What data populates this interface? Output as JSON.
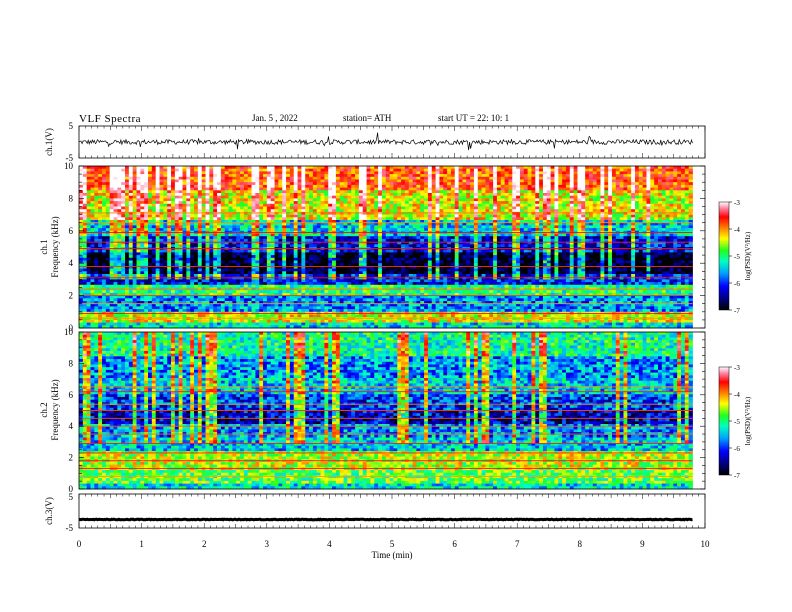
{
  "header": {
    "title": "VLF  Spectra",
    "date": "Jan.  5  , 2022",
    "station": "station= ATH",
    "start": "start  UT  =   22: 10: 1"
  },
  "labels": {
    "ch1_wave": "ch.1(V)",
    "ch1_spec_channel": "ch.1",
    "ch2_spec_channel": "ch.2",
    "ch3_wave": "ch.3(V)",
    "freq_axis": "Frequency  (kHz)",
    "colorbar": "log(PSD)(V²/Hz)",
    "time_axis": "Time  (min)"
  },
  "colors": {
    "colormap": [
      "#000000",
      "#00007a",
      "#0000ff",
      "#00a0ff",
      "#00ffc0",
      "#20ff20",
      "#ffff00",
      "#ff8000",
      "#ff0000",
      "#ff80a0",
      "#ffffff"
    ],
    "trace": "#000000"
  },
  "chart_data": [
    {
      "type": "line",
      "panel": "ch1-waveform",
      "ylabel": "ch.1(V)",
      "ylim": [
        -5,
        5
      ],
      "yticks": [
        -5,
        5
      ],
      "xlim": [
        0,
        10
      ],
      "x_extent": [
        0,
        9.8
      ],
      "description_values": {
        "mean": 0,
        "amplitude_typical": 1.5,
        "spikes_max": 5
      }
    },
    {
      "type": "heatmap",
      "panel": "ch1-spectrogram",
      "channel": "ch.1",
      "ylabel": "Frequency  (kHz)",
      "ylim": [
        0,
        10
      ],
      "yticks": [
        0,
        2,
        4,
        6,
        8,
        10
      ],
      "xlim": [
        0,
        10
      ],
      "x_extent": [
        0,
        9.8
      ],
      "colorbar": {
        "label": "log(PSD)(V²/Hz)",
        "range": [
          -7,
          -3
        ],
        "ticks": [
          -3,
          -4,
          -5,
          -6,
          -7
        ]
      },
      "bands": [
        {
          "f": [
            0.0,
            0.3
          ],
          "level": -5.5
        },
        {
          "f": [
            0.3,
            1.0
          ],
          "level": -4.6
        },
        {
          "f": [
            1.0,
            2.0
          ],
          "level": -5.8
        },
        {
          "f": [
            2.0,
            2.6
          ],
          "level": -5.2
        },
        {
          "f": [
            2.6,
            3.4
          ],
          "level": -6.2
        },
        {
          "f": [
            3.4,
            4.6
          ],
          "level": -6.9
        },
        {
          "f": [
            4.6,
            5.6
          ],
          "level": -6.3
        },
        {
          "f": [
            5.6,
            6.6
          ],
          "level": -5.6
        },
        {
          "f": [
            6.6,
            8.5
          ],
          "level": -4.6
        },
        {
          "f": [
            8.5,
            10.0
          ],
          "level": -4.0
        }
      ],
      "lines_khz": [
        0.6,
        0.9,
        1.5,
        2.0,
        2.4,
        3.1,
        3.8,
        4.9,
        5.3,
        5.9,
        6.5,
        7.1
      ]
    },
    {
      "type": "heatmap",
      "panel": "ch2-spectrogram",
      "channel": "ch.2",
      "ylabel": "Frequency  (kHz)",
      "ylim": [
        0,
        10
      ],
      "yticks": [
        0,
        2,
        4,
        6,
        8,
        10
      ],
      "xlim": [
        0,
        10
      ],
      "x_extent": [
        0,
        9.8
      ],
      "colorbar": {
        "label": "log(PSD)(V²/Hz)",
        "range": [
          -7,
          -3
        ],
        "ticks": [
          -3,
          -4,
          -5,
          -6,
          -7
        ]
      },
      "bands": [
        {
          "f": [
            0.0,
            0.4
          ],
          "level": -5.5
        },
        {
          "f": [
            0.4,
            1.2
          ],
          "level": -5.0
        },
        {
          "f": [
            1.2,
            2.4
          ],
          "level": -4.7
        },
        {
          "f": [
            2.4,
            3.2
          ],
          "level": -5.6
        },
        {
          "f": [
            3.2,
            4.2
          ],
          "level": -5.8
        },
        {
          "f": [
            4.2,
            5.0
          ],
          "level": -6.4
        },
        {
          "f": [
            5.0,
            6.0
          ],
          "level": -6.1
        },
        {
          "f": [
            6.0,
            7.0
          ],
          "level": -5.6
        },
        {
          "f": [
            7.0,
            8.5
          ],
          "level": -5.8
        },
        {
          "f": [
            8.5,
            10.0
          ],
          "level": -5.3
        }
      ],
      "lines_khz": [
        0.8,
        1.3,
        1.8,
        2.3,
        2.9,
        3.5,
        4.0,
        4.5,
        5.0,
        5.4,
        6.2,
        6.5
      ]
    },
    {
      "type": "line",
      "panel": "ch3-waveform",
      "ylabel": "ch.3(V)",
      "ylim": [
        -5,
        5
      ],
      "yticks": [
        -5,
        5
      ],
      "xlim": [
        0,
        10
      ],
      "x_extent": [
        0,
        9.8
      ],
      "xlabel": "Time  (min)",
      "xticks": [
        0,
        1,
        2,
        3,
        4,
        5,
        6,
        7,
        8,
        9,
        10
      ],
      "description_values": {
        "mean": -2.5,
        "amplitude_typical": 0.2
      }
    }
  ]
}
